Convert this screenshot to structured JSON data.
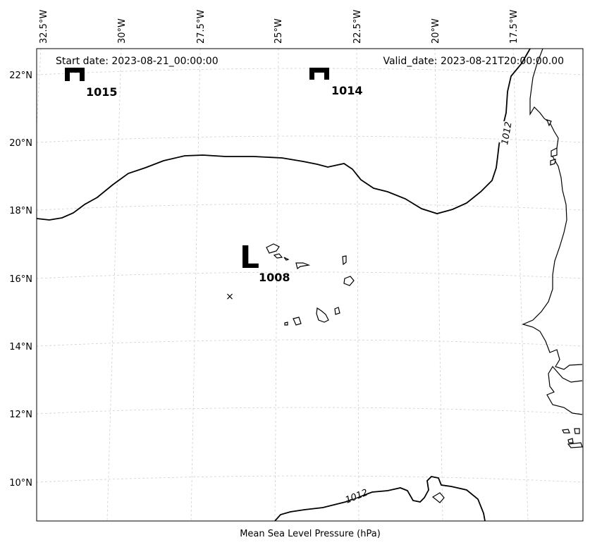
{
  "header": {
    "start_date": "Start date: 2023-08-21_00:00:00",
    "valid_date": "Valid_date: 2023-08-21T20:00:00.00"
  },
  "axes": {
    "lon_labels": [
      "32.5°W",
      "30°W",
      "27.5°W",
      "25°W",
      "22.5°W",
      "20°W",
      "17.5°W"
    ],
    "lat_labels": [
      "22°N",
      "20°N",
      "18°N",
      "16°N",
      "14°N",
      "12°N",
      "10°N"
    ],
    "xlabel": "Mean Sea Level Pressure (hPa)"
  },
  "systems": [
    {
      "type": "H",
      "value": "1015",
      "lon": -31.5,
      "lat": 22.0
    },
    {
      "type": "H",
      "value": "1014",
      "lon": -23.7,
      "lat": 22.0
    },
    {
      "type": "L",
      "value": "1008",
      "lon": -25.8,
      "lat": 16.5
    }
  ],
  "isobar_labels": [
    "1012",
    "1012"
  ],
  "marker": {
    "symbol": "×",
    "lon": -27.2,
    "lat": 15.5
  },
  "colors": {
    "isobar": "#000000",
    "grid": "#cfcfcf",
    "coast": "#000000"
  }
}
